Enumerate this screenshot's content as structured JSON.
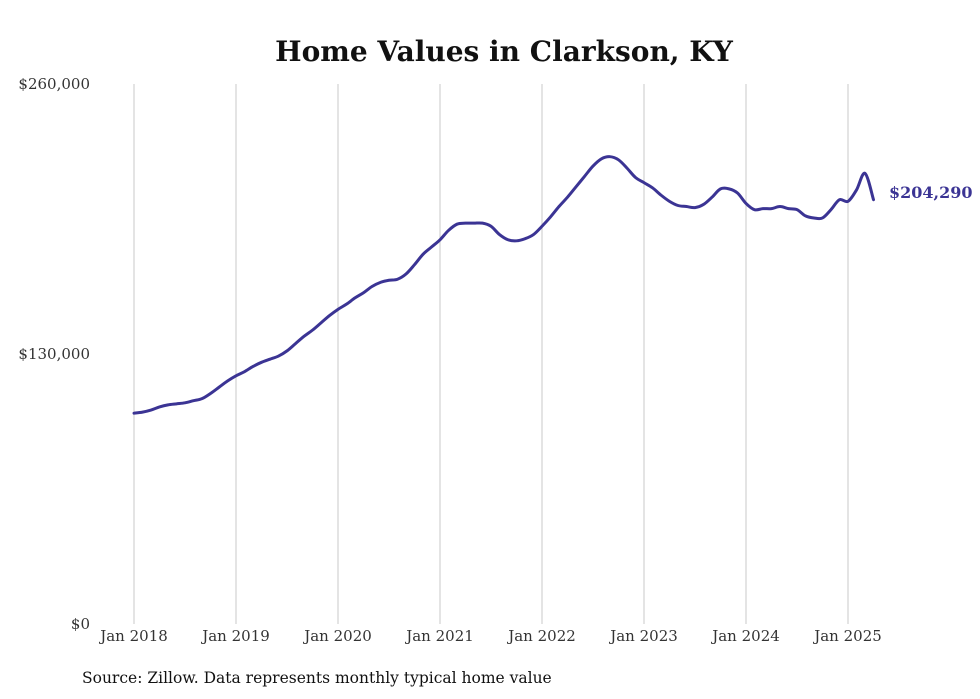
{
  "chart_data": {
    "type": "line",
    "title": "Home Values in Clarkson, KY",
    "xlabel": "",
    "ylabel": "",
    "ylim": [
      0,
      260000
    ],
    "xlim": [
      "2018-01",
      "2025-04"
    ],
    "y_ticks": [
      {
        "value": 0,
        "label": "$0"
      },
      {
        "value": 130000,
        "label": "$130,000"
      },
      {
        "value": 260000,
        "label": "$260,000"
      }
    ],
    "x_ticks": [
      {
        "value": "2018-01",
        "label": "Jan 2018"
      },
      {
        "value": "2019-01",
        "label": "Jan 2019"
      },
      {
        "value": "2020-01",
        "label": "Jan 2020"
      },
      {
        "value": "2021-01",
        "label": "Jan 2021"
      },
      {
        "value": "2022-01",
        "label": "Jan 2022"
      },
      {
        "value": "2023-01",
        "label": "Jan 2023"
      },
      {
        "value": "2024-01",
        "label": "Jan 2024"
      },
      {
        "value": "2025-01",
        "label": "Jan 2025"
      }
    ],
    "grid": {
      "vertical": true,
      "horizontal": false
    },
    "line_color": "#3b3494",
    "end_label": "$204,290",
    "series": [
      {
        "x": [
          "2018-01",
          "2018-02",
          "2018-03",
          "2018-04",
          "2018-05",
          "2018-06",
          "2018-07",
          "2018-08",
          "2018-09",
          "2018-10",
          "2018-11",
          "2018-12",
          "2019-01",
          "2019-02",
          "2019-03",
          "2019-04",
          "2019-05",
          "2019-06",
          "2019-07",
          "2019-08",
          "2019-09",
          "2019-10",
          "2019-11",
          "2019-12",
          "2020-01",
          "2020-02",
          "2020-03",
          "2020-04",
          "2020-05",
          "2020-06",
          "2020-07",
          "2020-08",
          "2020-09",
          "2020-10",
          "2020-11",
          "2020-12",
          "2021-01",
          "2021-02",
          "2021-03",
          "2021-04",
          "2021-05",
          "2021-06",
          "2021-07",
          "2021-08",
          "2021-09",
          "2021-10",
          "2021-11",
          "2021-12",
          "2022-01",
          "2022-02",
          "2022-03",
          "2022-04",
          "2022-05",
          "2022-06",
          "2022-07",
          "2022-08",
          "2022-09",
          "2022-10",
          "2022-11",
          "2022-12",
          "2023-01",
          "2023-02",
          "2023-03",
          "2023-04",
          "2023-05",
          "2023-06",
          "2023-07",
          "2023-08",
          "2023-09",
          "2023-10",
          "2023-11",
          "2023-12",
          "2024-01",
          "2024-02",
          "2024-03",
          "2024-04",
          "2024-05",
          "2024-06",
          "2024-07",
          "2024-08",
          "2024-09",
          "2024-10",
          "2024-11",
          "2024-12",
          "2025-01",
          "2025-02",
          "2025-03",
          "2025-04"
        ],
        "values": [
          101500,
          102000,
          103000,
          104500,
          105500,
          106000,
          106500,
          107500,
          108500,
          111000,
          114000,
          117000,
          119500,
          121500,
          124000,
          126000,
          127500,
          129000,
          131500,
          135000,
          138500,
          141500,
          145000,
          148500,
          151500,
          154000,
          157000,
          159500,
          162500,
          164500,
          165500,
          166000,
          168500,
          173000,
          178000,
          181500,
          185000,
          189500,
          192500,
          193000,
          193000,
          193000,
          191500,
          187500,
          185000,
          184500,
          185500,
          187500,
          191500,
          196000,
          201000,
          205500,
          210500,
          215500,
          220500,
          224000,
          225000,
          223500,
          219500,
          215000,
          212500,
          210000,
          206500,
          203500,
          201500,
          201000,
          200500,
          202000,
          205500,
          209500,
          209500,
          207500,
          202500,
          199500,
          200000,
          200000,
          201000,
          200000,
          199500,
          196500,
          195500,
          195500,
          199500,
          204290,
          203500,
          209000,
          217000,
          204290
        ]
      }
    ]
  },
  "source_note": "Source: Zillow. Data represents monthly typical home value"
}
